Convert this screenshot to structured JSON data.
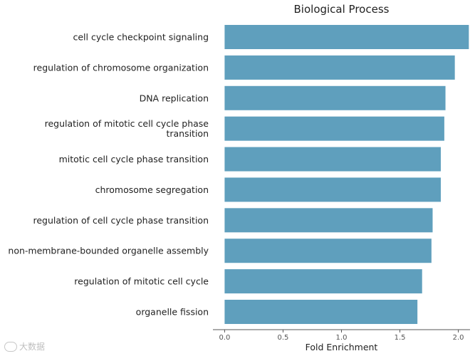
{
  "chart_data": {
    "type": "bar",
    "orientation": "horizontal",
    "title": "Biological Process",
    "xlabel": "Fold Enrichment",
    "ylabel": "",
    "xlim": [
      -0.1,
      2.1
    ],
    "x_ticks": [
      0.0,
      0.5,
      1.0,
      1.5,
      2.0
    ],
    "x_tick_labels": [
      "0.0",
      "0.5",
      "1.0",
      "1.5",
      "2.0"
    ],
    "categories": [
      "cell cycle checkpoint signaling",
      "regulation of chromosome organization",
      "DNA replication",
      "regulation of mitotic cell cycle phase transition",
      "mitotic cell cycle phase transition",
      "chromosome segregation",
      "regulation of cell cycle phase transition",
      "non-membrane-bounded organelle assembly",
      "regulation of mitotic cell cycle",
      "organelle fission"
    ],
    "values": [
      2.09,
      1.97,
      1.89,
      1.88,
      1.85,
      1.85,
      1.78,
      1.77,
      1.69,
      1.65
    ],
    "bar_color": "#5f9fbd",
    "grid": false,
    "legend": "none"
  },
  "watermark": {
    "text": "大数据",
    "icon": "logo-mark-icon"
  }
}
